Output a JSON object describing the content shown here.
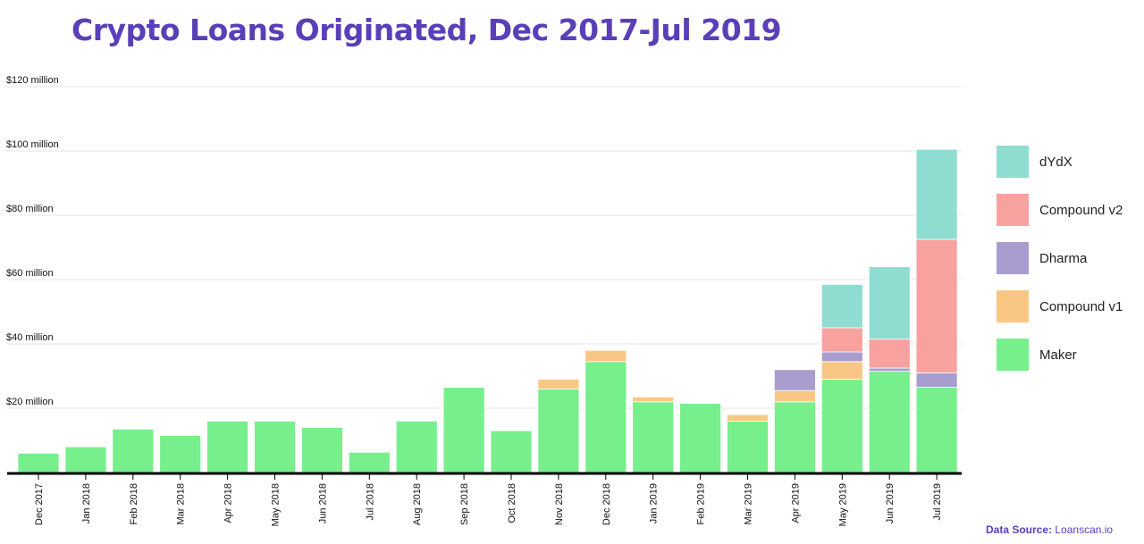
{
  "title": "Crypto Loans Originated, Dec 2017-Jul 2019",
  "source": {
    "label": "Data Source:",
    "value": "Loanscan.io"
  },
  "colors": {
    "title": "#5a3fb8",
    "grid": "#e6e6e6",
    "axis": "#000000",
    "source": "#5a3fb8"
  },
  "chart_data": {
    "type": "bar",
    "stacked": true,
    "title": "Crypto Loans Originated, Dec 2017-Jul 2019",
    "xlabel": "",
    "ylabel": "",
    "ylim": [
      0,
      120
    ],
    "yticks": [
      {
        "value": 20,
        "label": "$20 million"
      },
      {
        "value": 40,
        "label": "$40 million"
      },
      {
        "value": 60,
        "label": "$60 million"
      },
      {
        "value": 80,
        "label": "$80 million"
      },
      {
        "value": 100,
        "label": "$100 million"
      },
      {
        "value": 120,
        "label": "$120 million"
      }
    ],
    "grid": true,
    "legend": "right",
    "categories": [
      "Dec 2017",
      "Jan 2018",
      "Feb 2018",
      "Mar 2018",
      "Apr 2018",
      "May 2018",
      "Jun 2018",
      "Jul 2018",
      "Aug 2018",
      "Sep 2018",
      "Oct 2018",
      "Nov 2018",
      "Dec 2018",
      "Jan 2019",
      "Feb 2019",
      "Mar 2019",
      "Apr 2019",
      "May 2019",
      "Jun 2019",
      "Jul 2019"
    ],
    "series": [
      {
        "name": "Maker",
        "color": "#77ef8c",
        "values": [
          6,
          8,
          13.5,
          11.5,
          16,
          16,
          14,
          6.3,
          16,
          26.5,
          13,
          26,
          34.5,
          22,
          21.5,
          16,
          22,
          29,
          31.5,
          26.5
        ]
      },
      {
        "name": "Compound v1",
        "color": "#f9c784",
        "values": [
          0,
          0,
          0,
          0,
          0,
          0,
          0,
          0,
          0,
          0,
          0,
          3,
          3.5,
          1.5,
          0,
          2,
          3.5,
          5.5,
          0,
          0
        ]
      },
      {
        "name": "Dharma",
        "color": "#a99ccf",
        "values": [
          0,
          0,
          0,
          0,
          0,
          0,
          0,
          0,
          0,
          0,
          0,
          0,
          0,
          0,
          0,
          0,
          6.5,
          3,
          1,
          4.5
        ]
      },
      {
        "name": "Compound v2",
        "color": "#f7a29f",
        "values": [
          0,
          0,
          0,
          0,
          0,
          0,
          0,
          0,
          0,
          0,
          0,
          0,
          0,
          0,
          0,
          0,
          0,
          7.5,
          9,
          41.5
        ]
      },
      {
        "name": "dYdX",
        "color": "#8fddd1",
        "values": [
          0,
          0,
          0,
          0,
          0,
          0,
          0,
          0,
          0,
          0,
          0,
          0,
          0,
          0,
          0,
          0,
          0,
          13.5,
          22.5,
          28
        ]
      }
    ],
    "legend_order": [
      "dYdX",
      "Compound v2",
      "Dharma",
      "Compound v1",
      "Maker"
    ]
  }
}
